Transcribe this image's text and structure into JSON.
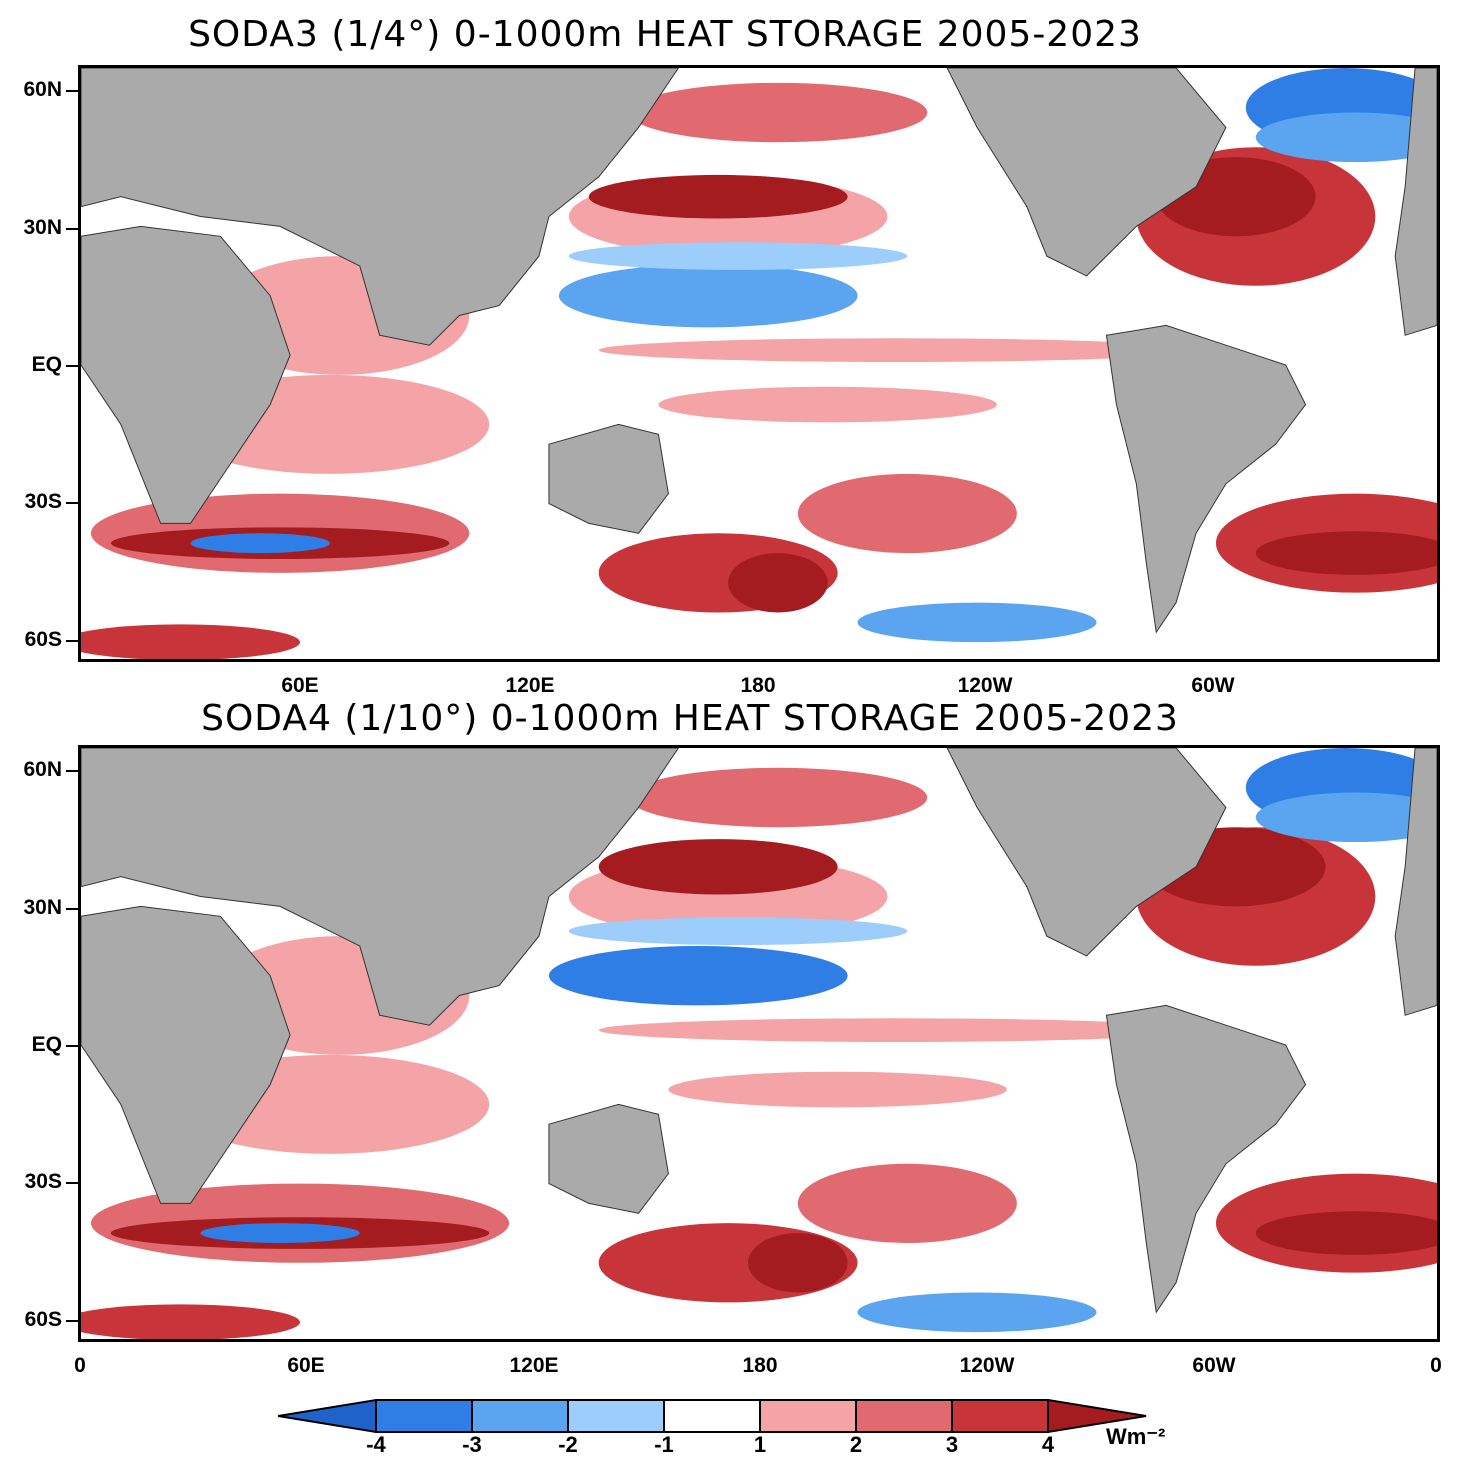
{
  "panels": [
    {
      "title": "SODA3 (1/4°) 0-1000m HEAT STORAGE 2005-2023"
    },
    {
      "title": "SODA4 (1/10°) 0-1000m HEAT STORAGE 2005-2023"
    }
  ],
  "lat_labels": [
    "60N",
    "30N",
    "EQ",
    "30S",
    "60S"
  ],
  "lon_labels_top": [
    "60E",
    "120E",
    "180",
    "120W",
    "60W"
  ],
  "lon_labels_bottom": [
    "0",
    "60E",
    "120E",
    "180",
    "120W",
    "60W",
    "0"
  ],
  "colorbar": {
    "labels": [
      "-4",
      "-3",
      "-2",
      "-1",
      "1",
      "2",
      "3",
      "4"
    ],
    "units": "Wm⁻²",
    "colors": [
      "#1f62c9",
      "#2f7ee6",
      "#5aa4f0",
      "#9ccdfb",
      "#ffffff",
      "#f4a4a6",
      "#e06a6f",
      "#c7353a",
      "#a51c20"
    ]
  },
  "land_color": "#aaaaaa"
}
